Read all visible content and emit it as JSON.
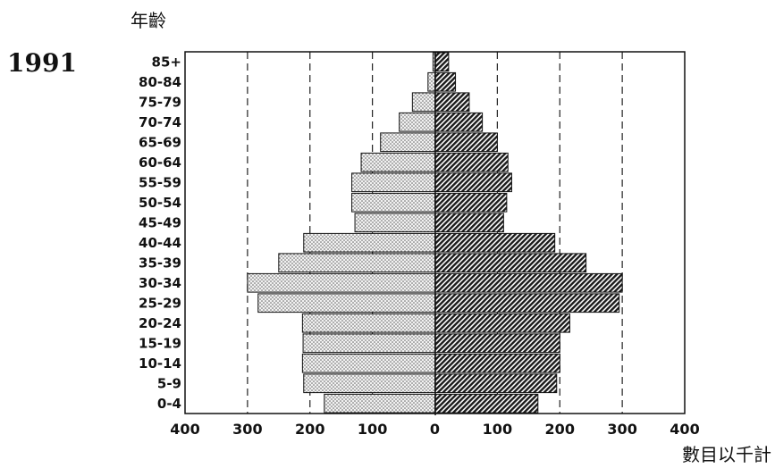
{
  "year": "1991",
  "chart_data": {
    "type": "bar",
    "orientation": "horizontal",
    "pyramid": true,
    "ylabel": "年齡",
    "xlabel": "數目以千計",
    "categories": [
      "85+",
      "80-84",
      "75-79",
      "70-74",
      "65-69",
      "60-64",
      "55-59",
      "50-54",
      "45-49",
      "40-44",
      "35-39",
      "30-34",
      "25-29",
      "20-24",
      "15-19",
      "10-14",
      "5-9",
      "0-4"
    ],
    "series": [
      {
        "side": "left",
        "values": [
          3,
          11,
          36,
          57,
          87,
          118,
          133,
          133,
          128,
          210,
          250,
          300,
          283,
          212,
          211,
          212,
          210,
          177
        ]
      },
      {
        "side": "right",
        "values": [
          22,
          33,
          55,
          76,
          100,
          117,
          123,
          115,
          110,
          192,
          242,
          300,
          295,
          216,
          200,
          200,
          195,
          165
        ]
      }
    ],
    "xticks": [
      "400",
      "300",
      "200",
      "100",
      "0",
      "100",
      "200",
      "300",
      "400"
    ],
    "xlim": [
      -400,
      400
    ],
    "gridlines": "vertical dashed at 100, 200, 300",
    "colors": {
      "left_fill": "#e2e2e2",
      "right_fill": "#2f2f2f"
    }
  }
}
